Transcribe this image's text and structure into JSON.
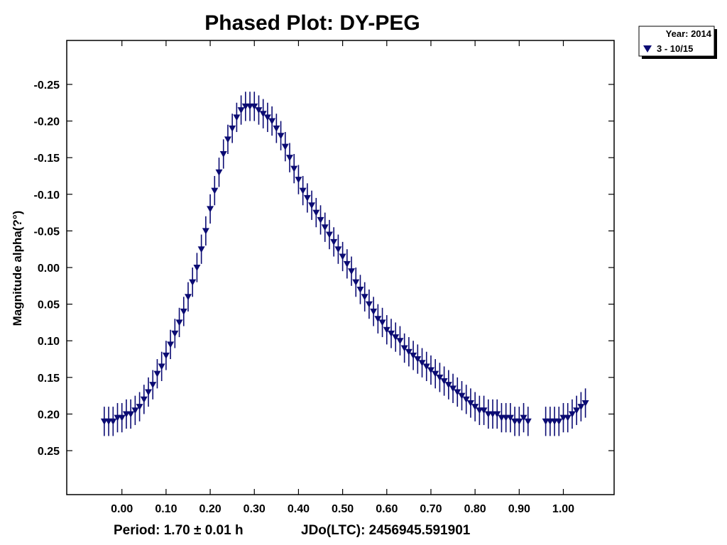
{
  "chart_data": {
    "type": "scatter",
    "title": "Phased Plot: DY-PEG",
    "xlabel": "",
    "ylabel": "Magnitude alpha(?°)",
    "xlim": [
      -0.125,
      1.115
    ],
    "ylim": [
      0.31,
      -0.31
    ],
    "y_inverted": true,
    "x_ticks": [
      0.0,
      0.1,
      0.2,
      0.3,
      0.4,
      0.5,
      0.6,
      0.7,
      0.8,
      0.9,
      1.0
    ],
    "x_tick_labels": [
      "0.00",
      "0.10",
      "0.20",
      "0.30",
      "0.40",
      "0.50",
      "0.60",
      "0.70",
      "0.80",
      "0.90",
      "1.00"
    ],
    "y_ticks": [
      -0.25,
      -0.2,
      -0.15,
      -0.1,
      -0.05,
      0.0,
      0.05,
      0.1,
      0.15,
      0.2,
      0.25
    ],
    "y_tick_labels": [
      "-0.25",
      "-0.20",
      "-0.15",
      "-0.10",
      "-0.05",
      "0.00",
      "0.05",
      "0.10",
      "0.15",
      "0.20",
      "0.25"
    ],
    "grid": false,
    "marker": "triangle-down",
    "legend_position": "top-right outside",
    "legend": {
      "title": "Year: 2014",
      "entries": [
        {
          "label": "3 - 10/15",
          "color": "#0b0b73"
        }
      ]
    },
    "series": [
      {
        "name": "3 - 10/15",
        "color": "#0b0b73",
        "error_bar": 0.02,
        "x": [
          -0.04,
          -0.03,
          -0.02,
          -0.01,
          0.0,
          0.01,
          0.02,
          0.03,
          0.04,
          0.05,
          0.06,
          0.07,
          0.08,
          0.09,
          0.1,
          0.11,
          0.12,
          0.13,
          0.14,
          0.15,
          0.16,
          0.17,
          0.18,
          0.19,
          0.2,
          0.21,
          0.22,
          0.23,
          0.24,
          0.25,
          0.26,
          0.27,
          0.28,
          0.29,
          0.3,
          0.31,
          0.32,
          0.33,
          0.34,
          0.35,
          0.36,
          0.37,
          0.38,
          0.39,
          0.4,
          0.41,
          0.42,
          0.43,
          0.44,
          0.45,
          0.46,
          0.47,
          0.48,
          0.49,
          0.5,
          0.51,
          0.52,
          0.53,
          0.54,
          0.55,
          0.56,
          0.57,
          0.58,
          0.59,
          0.6,
          0.61,
          0.62,
          0.63,
          0.64,
          0.65,
          0.66,
          0.67,
          0.68,
          0.69,
          0.7,
          0.71,
          0.72,
          0.73,
          0.74,
          0.75,
          0.76,
          0.77,
          0.78,
          0.79,
          0.8,
          0.81,
          0.82,
          0.83,
          0.84,
          0.85,
          0.86,
          0.87,
          0.88,
          0.89,
          0.9,
          0.91,
          0.92,
          0.96,
          0.97,
          0.98,
          0.99,
          1.0,
          1.01,
          1.02,
          1.03,
          1.04,
          1.05
        ],
        "y": [
          0.21,
          0.21,
          0.21,
          0.205,
          0.205,
          0.2,
          0.2,
          0.195,
          0.19,
          0.18,
          0.17,
          0.16,
          0.145,
          0.135,
          0.12,
          0.105,
          0.09,
          0.075,
          0.06,
          0.04,
          0.02,
          0.0,
          -0.025,
          -0.05,
          -0.08,
          -0.105,
          -0.13,
          -0.155,
          -0.175,
          -0.19,
          -0.205,
          -0.215,
          -0.22,
          -0.22,
          -0.22,
          -0.215,
          -0.21,
          -0.205,
          -0.2,
          -0.19,
          -0.18,
          -0.165,
          -0.15,
          -0.135,
          -0.12,
          -0.105,
          -0.095,
          -0.085,
          -0.075,
          -0.065,
          -0.055,
          -0.045,
          -0.035,
          -0.025,
          -0.015,
          -0.005,
          0.005,
          0.02,
          0.03,
          0.04,
          0.05,
          0.06,
          0.07,
          0.075,
          0.085,
          0.09,
          0.095,
          0.1,
          0.11,
          0.115,
          0.12,
          0.125,
          0.13,
          0.135,
          0.14,
          0.145,
          0.15,
          0.155,
          0.16,
          0.165,
          0.17,
          0.175,
          0.18,
          0.185,
          0.19,
          0.195,
          0.195,
          0.2,
          0.2,
          0.2,
          0.205,
          0.205,
          0.205,
          0.21,
          0.21,
          0.205,
          0.21,
          0.21,
          0.21,
          0.21,
          0.21,
          0.205,
          0.205,
          0.2,
          0.195,
          0.19,
          0.185
        ]
      }
    ],
    "footer": {
      "period": "Period: 1.70 ± 0.01 h",
      "jdo": "JDo(LTC): 2456945.591901"
    }
  }
}
